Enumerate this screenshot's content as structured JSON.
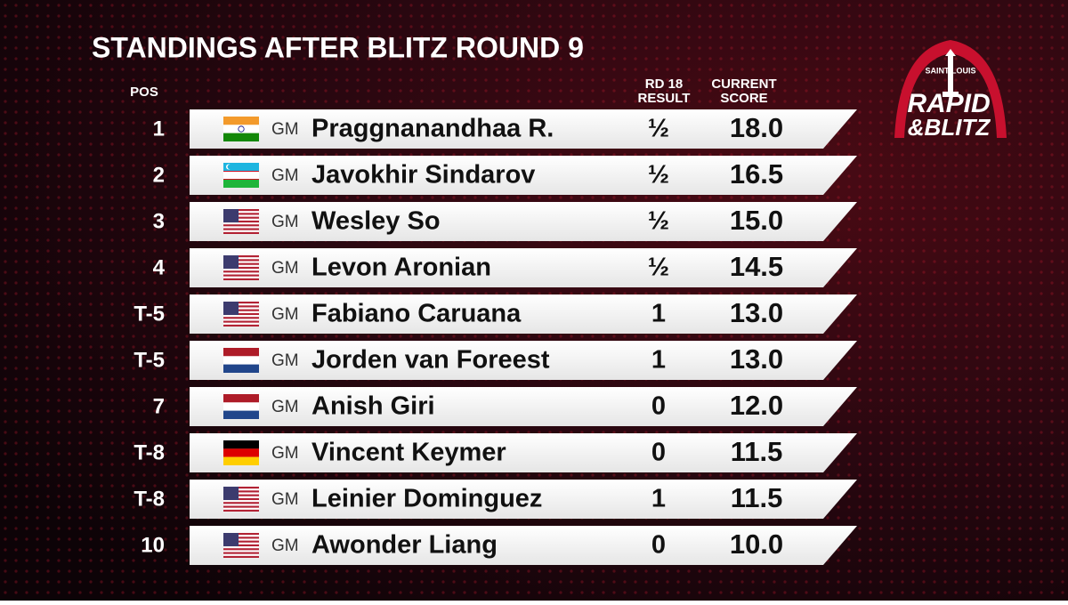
{
  "header": {
    "title": "STANDINGS AFTER BLITZ ROUND 9",
    "pos": "POS",
    "result": [
      "RD 18",
      "RESULT"
    ],
    "score": [
      "CURRENT",
      "SCORE"
    ]
  },
  "logo": {
    "top": "SAINT LOUIS",
    "line1": "RAPID",
    "line2": "&BLITZ"
  },
  "table": {
    "rows": [
      [
        "1",
        "GM",
        "Praggnanandhaa R.",
        "½",
        "18.0"
      ],
      [
        "2",
        "GM",
        "Javokhir Sindarov",
        "½",
        "16.5"
      ],
      [
        "3",
        "GM",
        "Wesley So",
        "½",
        "15.0"
      ],
      [
        "4",
        "GM",
        "Levon Aronian",
        "½",
        "14.5"
      ],
      [
        "T-5",
        "GM",
        "Fabiano Caruana",
        "1",
        "13.0"
      ],
      [
        "T-5",
        "GM",
        "Jorden van Foreest",
        "1",
        "13.0"
      ],
      [
        "7",
        "GM",
        "Anish Giri",
        "0",
        "12.0"
      ],
      [
        "T-8",
        "GM",
        "Vincent Keymer",
        "0",
        "11.5"
      ],
      [
        "T-8",
        "GM",
        "Leinier Dominguez",
        "1",
        "11.5"
      ],
      [
        "10",
        "GM",
        "Awonder Liang",
        "0",
        "10.0"
      ]
    ]
  }
}
